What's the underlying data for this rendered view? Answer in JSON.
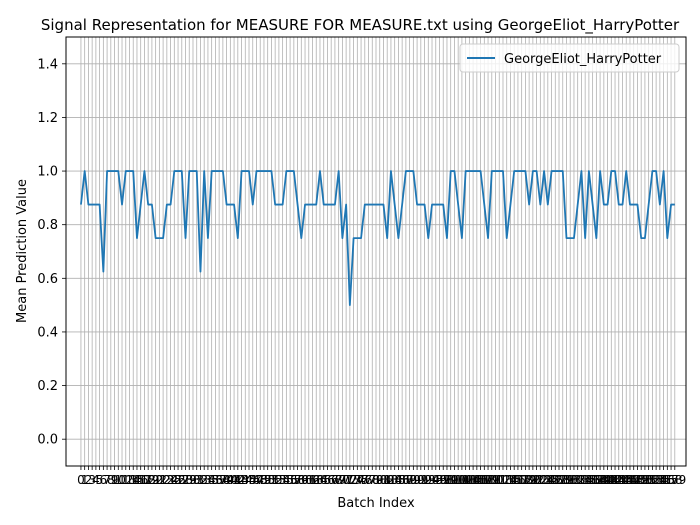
{
  "chart_data": {
    "type": "line",
    "title": "Signal Representation for MEASURE FOR MEASURE.txt using GeorgeEliot_HarryPotter",
    "xlabel": "Batch Index",
    "ylabel": "Mean Prediction Value",
    "xlim": [
      -4,
      162
    ],
    "ylim": [
      -0.1,
      1.5
    ],
    "yticks": [
      "0.0",
      "0.2",
      "0.4",
      "0.6",
      "0.8",
      "1.0",
      "1.2",
      "1.4"
    ],
    "ytick_values": [
      0.0,
      0.2,
      0.4,
      0.6,
      0.8,
      1.0,
      1.2,
      1.4
    ],
    "grid": true,
    "legend_position": "top-right",
    "line_color": "#1f77b4",
    "series": [
      {
        "name": "GeorgeEliot_HarryPotter",
        "values": [
          0.875,
          1.0,
          0.875,
          0.875,
          0.875,
          0.875,
          0.625,
          1.0,
          1.0,
          1.0,
          1.0,
          0.875,
          1.0,
          1.0,
          1.0,
          0.75,
          0.875,
          1.0,
          0.875,
          0.875,
          0.75,
          0.75,
          0.75,
          0.875,
          0.875,
          1.0,
          1.0,
          1.0,
          0.75,
          1.0,
          1.0,
          1.0,
          0.625,
          1.0,
          0.75,
          1.0,
          1.0,
          1.0,
          1.0,
          0.875,
          0.875,
          0.875,
          0.75,
          1.0,
          1.0,
          1.0,
          0.875,
          1.0,
          1.0,
          1.0,
          1.0,
          1.0,
          0.875,
          0.875,
          0.875,
          1.0,
          1.0,
          1.0,
          0.875,
          0.75,
          0.875,
          0.875,
          0.875,
          0.875,
          1.0,
          0.875,
          0.875,
          0.875,
          0.875,
          1.0,
          0.75,
          0.875,
          0.5,
          0.75,
          0.75,
          0.75,
          0.875,
          0.875,
          0.875,
          0.875,
          0.875,
          0.875,
          0.75,
          1.0,
          0.875,
          0.75,
          0.875,
          1.0,
          1.0,
          1.0,
          0.875,
          0.875,
          0.875,
          0.75,
          0.875,
          0.875,
          0.875,
          0.875,
          0.75,
          1.0,
          1.0,
          0.875,
          0.75,
          1.0,
          1.0,
          1.0,
          1.0,
          1.0,
          0.875,
          0.75,
          1.0,
          1.0,
          1.0,
          1.0,
          0.75,
          0.875,
          1.0,
          1.0,
          1.0,
          1.0,
          0.875,
          1.0,
          1.0,
          0.875,
          1.0,
          0.875,
          1.0,
          1.0,
          1.0,
          1.0,
          0.75,
          0.75,
          0.75,
          0.875,
          1.0,
          0.75,
          1.0,
          0.875,
          0.75,
          1.0,
          0.875,
          0.875,
          1.0,
          1.0,
          0.875,
          0.875,
          1.0,
          0.875,
          0.875,
          0.875,
          0.75,
          0.75,
          0.875,
          1.0,
          1.0,
          0.875,
          1.0,
          0.75,
          0.875,
          0.875
        ]
      }
    ]
  }
}
